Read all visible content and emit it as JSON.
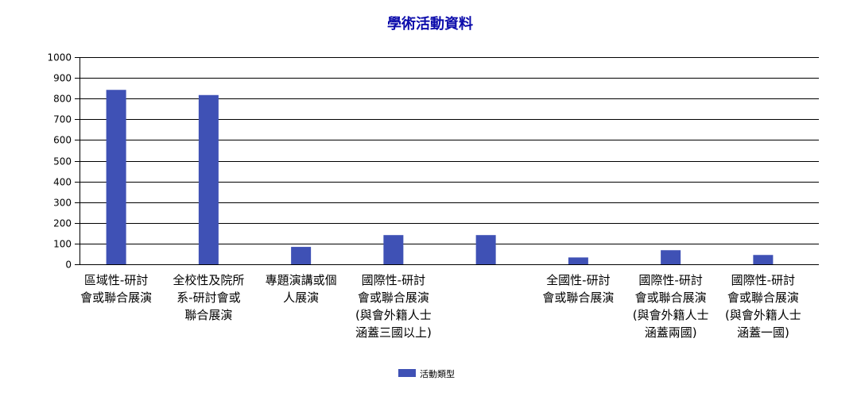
{
  "chart_data": {
    "type": "bar",
    "title": "學術活動資料",
    "categories": [
      [
        "區域性-研討",
        "會或聯合展演"
      ],
      [
        "全校性及院所",
        "系-研討會或",
        "聯合展演"
      ],
      [
        "專題演講或個",
        "人展演"
      ],
      [
        "國際性-研討",
        "會或聯合展演",
        "(與會外籍人士",
        "涵蓋三國以上)"
      ],
      [],
      [
        "全國性-研討",
        "會或聯合展演"
      ],
      [
        "國際性-研討",
        "會或聯合展演",
        "(與會外籍人士",
        "涵蓋兩國)"
      ],
      [
        "國際性-研討",
        "會或聯合展演",
        "(與會外籍人士",
        "涵蓋一國)"
      ]
    ],
    "series": [
      {
        "name": "活動類型",
        "values": [
          842,
          817,
          84,
          141,
          141,
          33,
          68,
          45
        ]
      }
    ],
    "ylim": [
      0,
      1000
    ],
    "yticks": [
      0,
      100,
      200,
      300,
      400,
      500,
      600,
      700,
      800,
      900,
      1000
    ],
    "grid": true,
    "legend_position": "bottom-center",
    "colors": {
      "bar": "#3f51b5",
      "title": "#0b0bab",
      "grid": "#000000",
      "text": "#000000"
    }
  }
}
